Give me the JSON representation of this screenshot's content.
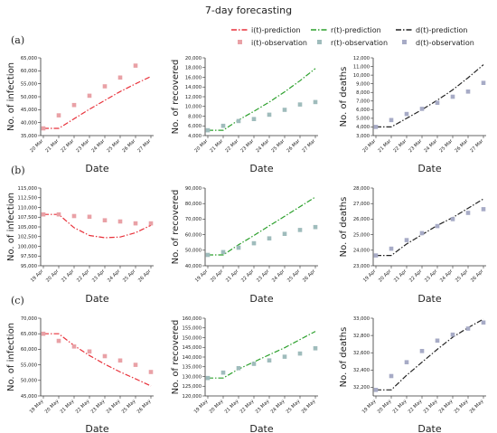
{
  "figure": {
    "title": "7-day forecasting",
    "row_labels": [
      "(a)",
      "(b)",
      "(c)"
    ],
    "xlabel": "Date",
    "legend": [
      {
        "label": "i(t)-prediction",
        "kind": "line",
        "color": "#e8313a",
        "dash": "dashdot"
      },
      {
        "label": "r(t)-prediction",
        "kind": "line",
        "color": "#2ca02c",
        "dash": "dashdot"
      },
      {
        "label": "d(t)-prediction",
        "kind": "line",
        "color": "#222222",
        "dash": "dashdot"
      },
      {
        "label": "i(t)-observation",
        "kind": "marker",
        "color": "#e9a1a6"
      },
      {
        "label": "r(t)-observation",
        "kind": "marker",
        "color": "#9fbcbc"
      },
      {
        "label": "d(t)-observation",
        "kind": "marker",
        "color": "#a7abc6"
      }
    ]
  },
  "chart_data": [
    {
      "id": "a-infection",
      "type": "line",
      "ylabel": "No. of infection",
      "color": "#e8313a",
      "obs_color": "#e9a1a6",
      "x": [
        "20 Mar",
        "21 Mar",
        "22 Mar",
        "23 Mar",
        "24 Mar",
        "25 Mar",
        "26 Mar",
        "27 Mar"
      ],
      "ylim": [
        35000,
        65000
      ],
      "yticks": [
        35000,
        40000,
        45000,
        50000,
        55000,
        60000,
        65000
      ],
      "yticklabels": [
        "35,000",
        "40,000",
        "45,000",
        "50,000",
        "55,000",
        "60,000",
        "65,000"
      ],
      "prediction": [
        37800,
        37800,
        41500,
        45200,
        48600,
        52000,
        55000,
        57800
      ],
      "observation": [
        37800,
        42800,
        46800,
        50400,
        54000,
        57400,
        62000,
        null
      ]
    },
    {
      "id": "a-recovered",
      "type": "line",
      "ylabel": "No. of recovered",
      "color": "#2ca02c",
      "obs_color": "#9fbcbc",
      "x": [
        "20 Mar",
        "21 Mar",
        "22 Mar",
        "23 Mar",
        "24 Mar",
        "25 Mar",
        "26 Mar",
        "27 Mar"
      ],
      "ylim": [
        4000,
        20000
      ],
      "yticks": [
        4000,
        6000,
        8000,
        10000,
        12000,
        14000,
        16000,
        18000,
        20000
      ],
      "yticklabels": [
        "4,000",
        "6,000",
        "8,000",
        "10,000",
        "12,000",
        "14,000",
        "16,000",
        "18,000",
        "20,000"
      ],
      "prediction": [
        5100,
        5100,
        7200,
        9000,
        10900,
        13000,
        15300,
        17800
      ],
      "observation": [
        5100,
        6000,
        7000,
        7400,
        8300,
        9300,
        10400,
        10900
      ]
    },
    {
      "id": "a-deaths",
      "type": "line",
      "ylabel": "No. of deaths",
      "color": "#222222",
      "obs_color": "#a7abc6",
      "x": [
        "20 Mar",
        "21 Mar",
        "22 Mar",
        "23 Mar",
        "24 Mar",
        "25 Mar",
        "26 Mar",
        "27 Mar"
      ],
      "ylim": [
        3000,
        12000
      ],
      "yticks": [
        3000,
        4000,
        5000,
        6000,
        7000,
        8000,
        9000,
        10000,
        11000,
        12000
      ],
      "yticklabels": [
        "3,000",
        "4,000",
        "5,000",
        "6,000",
        "7,000",
        "8,000",
        "9,000",
        "10,000",
        "11,000",
        "12,000"
      ],
      "prediction": [
        4000,
        4000,
        5000,
        6000,
        7100,
        8300,
        9700,
        11200
      ],
      "observation": [
        4000,
        4800,
        5500,
        6100,
        6800,
        7500,
        8100,
        9100
      ]
    },
    {
      "id": "b-infection",
      "type": "line",
      "ylabel": "No. of infection",
      "color": "#e8313a",
      "obs_color": "#e9a1a6",
      "x": [
        "19 Apr",
        "20 Apr",
        "21 Apr",
        "22 Apr",
        "23 Apr",
        "24 Apr",
        "25 Apr",
        "26 Apr"
      ],
      "ylim": [
        95000,
        115000
      ],
      "yticks": [
        95000,
        97500,
        100000,
        102500,
        105000,
        107500,
        110000,
        112500,
        115000
      ],
      "yticklabels": [
        "95,000",
        "97,500",
        "100,000",
        "102,500",
        "105,000",
        "107,500",
        "110,000",
        "112,500",
        "115,000"
      ],
      "prediction": [
        108200,
        108200,
        104800,
        102800,
        102200,
        102400,
        103500,
        105400
      ],
      "observation": [
        108200,
        108200,
        107800,
        107600,
        106700,
        106400,
        105900,
        105900
      ]
    },
    {
      "id": "b-recovered",
      "type": "line",
      "ylabel": "No. of recovered",
      "color": "#2ca02c",
      "obs_color": "#9fbcbc",
      "x": [
        "19 Apr",
        "20 Apr",
        "21 Apr",
        "22 Apr",
        "23 Apr",
        "24 Apr",
        "25 Apr",
        "26 Apr"
      ],
      "ylim": [
        40000,
        90000
      ],
      "yticks": [
        40000,
        50000,
        60000,
        70000,
        80000,
        90000
      ],
      "yticklabels": [
        "40,000",
        "50,000",
        "60,000",
        "70,000",
        "80,000",
        "90,000"
      ],
      "prediction": [
        47000,
        47000,
        53500,
        59500,
        65700,
        71800,
        78000,
        84200
      ],
      "observation": [
        47000,
        48800,
        51600,
        54500,
        57600,
        60500,
        63000,
        64900
      ]
    },
    {
      "id": "b-deaths",
      "type": "line",
      "ylabel": "No. of deaths",
      "color": "#222222",
      "obs_color": "#a7abc6",
      "x": [
        "19 Apr",
        "20 Apr",
        "21 Apr",
        "22 Apr",
        "23 Apr",
        "24 Apr",
        "25 Apr",
        "26 Apr"
      ],
      "ylim": [
        23000,
        28000
      ],
      "yticks": [
        23000,
        24000,
        25000,
        26000,
        27000,
        28000
      ],
      "yticklabels": [
        "23,000",
        "24,000",
        "25,000",
        "26,000",
        "27,000",
        "28,000"
      ],
      "prediction": [
        23660,
        23660,
        24400,
        25000,
        25600,
        26100,
        26700,
        27300
      ],
      "observation": [
        23660,
        24100,
        24650,
        25100,
        25550,
        26000,
        26400,
        26640
      ]
    },
    {
      "id": "c-infection",
      "type": "line",
      "ylabel": "No. of infection",
      "color": "#e8313a",
      "obs_color": "#e9a1a6",
      "x": [
        "19 May",
        "20 May",
        "21 May",
        "22 May",
        "23 May",
        "24 May",
        "25 May",
        "26 May"
      ],
      "ylim": [
        45000,
        70000
      ],
      "yticks": [
        45000,
        50000,
        55000,
        60000,
        65000,
        70000
      ],
      "yticklabels": [
        "45,000",
        "50,000",
        "55,000",
        "60,000",
        "65,000",
        "70,000"
      ],
      "prediction": [
        65000,
        65000,
        61200,
        58000,
        55200,
        52700,
        50500,
        48200
      ],
      "observation": [
        65000,
        62700,
        60900,
        59300,
        57800,
        56400,
        55000,
        52700
      ]
    },
    {
      "id": "c-recovered",
      "type": "line",
      "ylabel": "No. of recovered",
      "color": "#2ca02c",
      "obs_color": "#9fbcbc",
      "x": [
        "19 May",
        "20 May",
        "21 May",
        "22 May",
        "23 May",
        "24 May",
        "25 May",
        "26 May"
      ],
      "ylim": [
        120000,
        160000
      ],
      "yticks": [
        120000,
        125000,
        130000,
        135000,
        140000,
        145000,
        150000,
        155000,
        160000
      ],
      "yticklabels": [
        "120,000",
        "125,000",
        "130,000",
        "135,000",
        "140,000",
        "145,000",
        "150,000",
        "155,000",
        "160,000"
      ],
      "prediction": [
        129200,
        129200,
        133800,
        137500,
        141200,
        144800,
        149000,
        153200
      ],
      "observation": [
        129200,
        132000,
        134300,
        136500,
        138300,
        140200,
        141800,
        144500
      ]
    },
    {
      "id": "c-deaths",
      "type": "line",
      "ylabel": "No. of deaths",
      "color": "#222222",
      "obs_color": "#a7abc6",
      "x": [
        "19 May",
        "20 May",
        "21 May",
        "22 May",
        "23 May",
        "24 May",
        "25 May",
        "26 May"
      ],
      "ylim": [
        32100,
        33000
      ],
      "yticks": [
        32200,
        32400,
        32600,
        32800,
        33000
      ],
      "yticklabels": [
        "32,200",
        "32,400",
        "32,600",
        "32,800",
        "33,000"
      ],
      "prediction": [
        32170,
        32170,
        32340,
        32490,
        32640,
        32780,
        32890,
        32990
      ],
      "observation": [
        32170,
        32330,
        32490,
        32620,
        32740,
        32810,
        32880,
        32950
      ]
    }
  ]
}
